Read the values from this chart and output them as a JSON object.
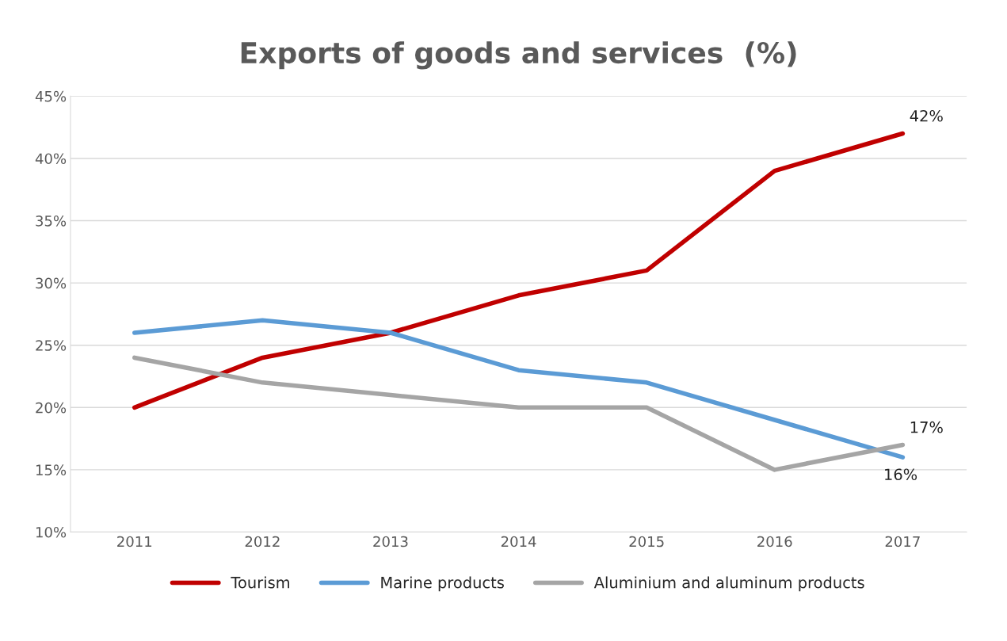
{
  "chart_data": {
    "type": "line",
    "title": "Exports of goods and services  (%)",
    "categories": [
      "2011",
      "2012",
      "2013",
      "2014",
      "2015",
      "2016",
      "2017"
    ],
    "series": [
      {
        "name": "Tourism",
        "color": "#c00000",
        "values": [
          20,
          24,
          26,
          29,
          31,
          39,
          42
        ],
        "value_labels": [
          null,
          null,
          null,
          null,
          null,
          null,
          "42%"
        ]
      },
      {
        "name": "Marine products",
        "color": "#5b9bd5",
        "values": [
          26,
          27,
          26,
          23,
          22,
          19,
          16
        ],
        "value_labels": [
          null,
          null,
          null,
          null,
          null,
          null,
          "16%"
        ]
      },
      {
        "name": "Aluminium and aluminum products",
        "color": "#a5a5a5",
        "values": [
          24,
          22,
          21,
          20,
          20,
          15,
          17
        ],
        "value_labels": [
          null,
          null,
          null,
          null,
          null,
          null,
          "17%"
        ]
      }
    ],
    "ylim": [
      10,
      45
    ],
    "yticks": [
      {
        "value": 10,
        "label": "10%"
      },
      {
        "value": 15,
        "label": "15%"
      },
      {
        "value": 20,
        "label": "20%"
      },
      {
        "value": 25,
        "label": "25%"
      },
      {
        "value": 30,
        "label": "30%"
      },
      {
        "value": 35,
        "label": "35%"
      },
      {
        "value": 40,
        "label": "40%"
      },
      {
        "value": 45,
        "label": "45%"
      }
    ],
    "grid": "y",
    "legend": "bottom",
    "line_style": "solid",
    "marker": "none"
  }
}
